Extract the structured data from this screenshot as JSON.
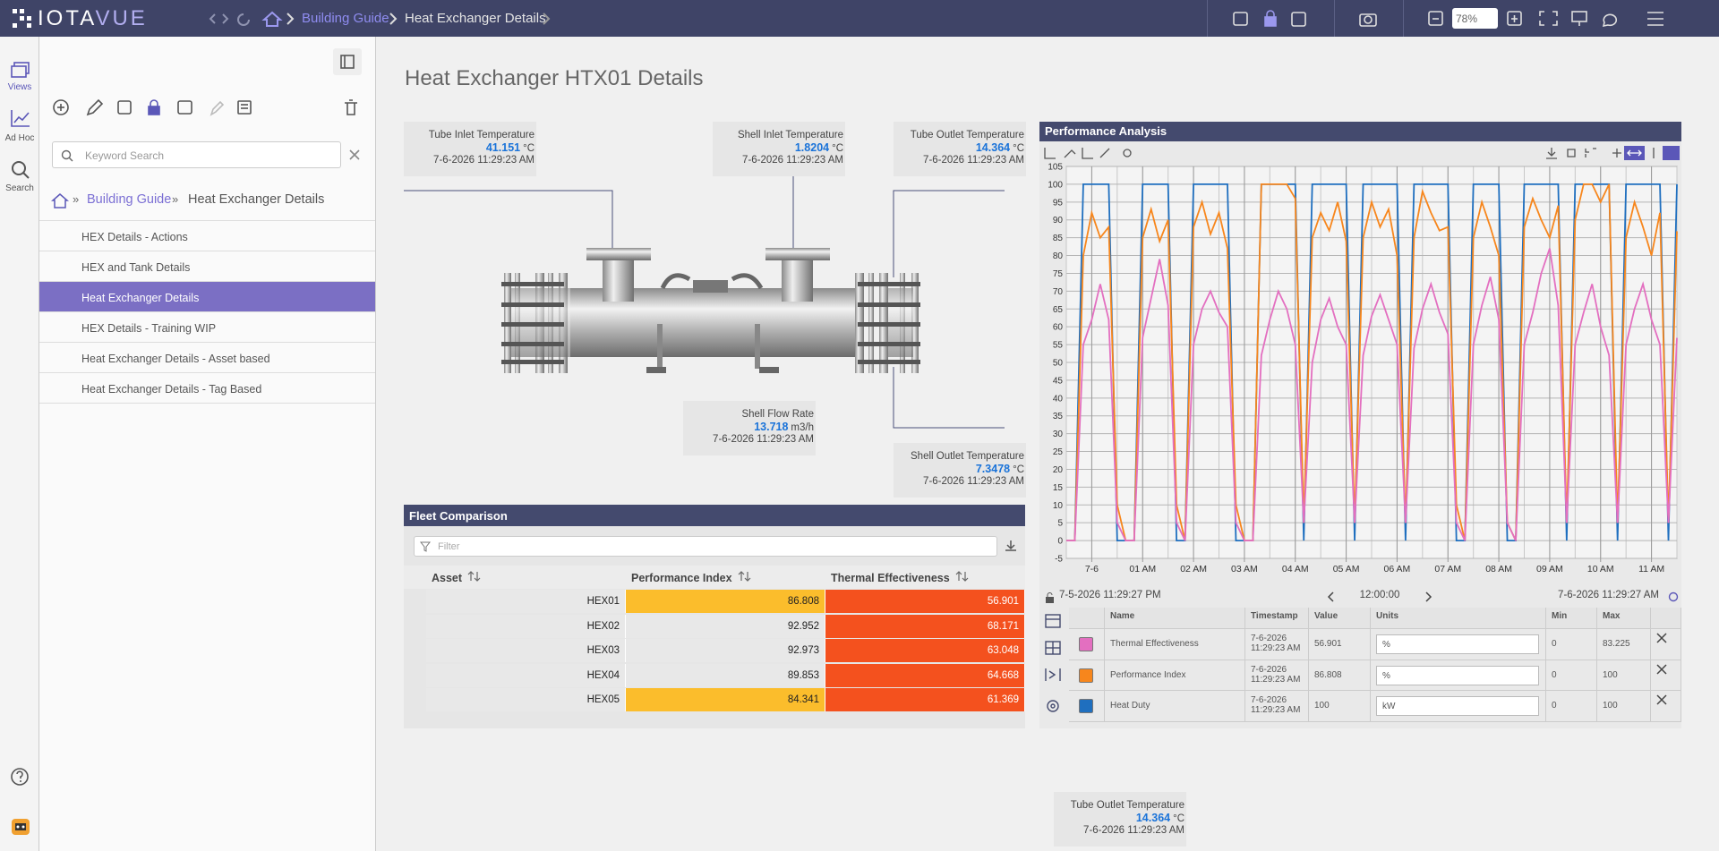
{
  "app": {
    "brand": [
      "IOTA",
      "VUE"
    ],
    "zoom": "78%"
  },
  "breadcrumb": [
    "Building Guide",
    "Heat Exchanger Details"
  ],
  "rail": [
    "Views",
    "Ad Hoc",
    "Search"
  ],
  "panel": {
    "search_placeholder": "Keyword Search",
    "active": 2,
    "items": [
      "HEX Details - Actions",
      "HEX and Tank Details",
      "Heat Exchanger Details",
      "HEX Details - Training WIP",
      "Heat Exchanger Details - Asset based",
      "Heat Exchanger Details - Tag Based"
    ]
  },
  "page_title": "Heat Exchanger HTX01 Details",
  "readings": [
    {
      "label": "Tube Inlet Temperature",
      "value": 41.151,
      "unit": "°C",
      "timestamp": "7-6-2026 11:29:23 AM"
    },
    {
      "label": "Shell Inlet Temperature",
      "value": 1.8204,
      "unit": "°C",
      "timestamp": "7-6-2026 11:29:23 AM"
    },
    {
      "label": "Tube Outlet Temperature",
      "value": 14.364,
      "unit": "°C",
      "timestamp": "7-6-2026 11:29:23 AM"
    },
    {
      "label": "Shell Flow Rate",
      "value": 13.718,
      "unit": "m3/h",
      "timestamp": "7-6-2026 11:29:23 AM"
    },
    {
      "label": "Shell Outlet Temperature",
      "value": 7.3478,
      "unit": "°C",
      "timestamp": "7-6-2026 11:29:23 AM"
    },
    {
      "label": "Tube Outlet Temperature",
      "value": 14.364,
      "unit": "°C",
      "timestamp": "7-6-2026 11:29:23 AM"
    }
  ],
  "fleet": {
    "title": "Fleet Comparison",
    "filter_placeholder": "Filter",
    "columns": [
      "Asset",
      "Performance Index",
      "Thermal Effectiveness"
    ],
    "rows": [
      {
        "asset": "HEX01",
        "performance_index": 86.808,
        "thermal_effectiveness": 56.901,
        "icon_color": "#2f7fc8",
        "colors": [
          "#fbbd2c",
          "#f4511e"
        ]
      },
      {
        "asset": "HEX02",
        "performance_index": 92.952,
        "thermal_effectiveness": 68.171,
        "icon_color": "#f08a24",
        "colors": [
          "#e8e8e8",
          "#f4511e"
        ]
      },
      {
        "asset": "HEX03",
        "performance_index": 92.973,
        "thermal_effectiveness": 63.048,
        "icon_color": "#2e9e3e",
        "colors": [
          "#e8e8e8",
          "#f4511e"
        ]
      },
      {
        "asset": "HEX04",
        "performance_index": 89.853,
        "thermal_effectiveness": 64.668,
        "icon_color": "#d62728",
        "colors": [
          "#e8e8e8",
          "#f4511e"
        ]
      },
      {
        "asset": "HEX05",
        "performance_index": 84.341,
        "thermal_effectiveness": 61.369,
        "icon_color": "#9467bd",
        "colors": [
          "#fbbd2c",
          "#f4511e"
        ]
      }
    ]
  },
  "chart_data": {
    "type": "line",
    "title": "Performance Analysis",
    "grid": true,
    "categories": [
      null,
      null,
      null,
      "7-6",
      null,
      null,
      null,
      null,
      null,
      "01 AM",
      null,
      null,
      null,
      null,
      null,
      "02 AM",
      null,
      null,
      null,
      null,
      null,
      "03 AM",
      null,
      null,
      null,
      null,
      null,
      "04 AM",
      null,
      null,
      null,
      null,
      null,
      "05 AM",
      null,
      null,
      null,
      null,
      null,
      "06 AM",
      null,
      null,
      null,
      null,
      null,
      "07 AM",
      null,
      null,
      null,
      null,
      null,
      "08 AM",
      null,
      null,
      null,
      null,
      null,
      "09 AM",
      null,
      null,
      null,
      null,
      null,
      "10 AM",
      null,
      null,
      null,
      null,
      null,
      "11 AM",
      null,
      null,
      null
    ],
    "ylim": [
      -5,
      105
    ],
    "yticks": [
      -5,
      0,
      5,
      10,
      15,
      20,
      25,
      30,
      35,
      40,
      45,
      50,
      55,
      60,
      65,
      70,
      75,
      80,
      85,
      90,
      95,
      100,
      105
    ],
    "range_start": "7-5-2026 11:29:27 PM",
    "range": "12:00:00",
    "range_end": "7-6-2026 11:29:27 AM",
    "legend_columns": [
      "Name",
      "Timestamp",
      "Value",
      "Units",
      "Min",
      "Max"
    ],
    "series": [
      {
        "name": "Thermal Effectiveness",
        "color": "#e36fc0",
        "timestamp": "7-6-2026 11:29:23 AM",
        "current": 56.901,
        "unit": "%",
        "min": 0,
        "max": 83.225,
        "values": [
          0,
          0,
          55,
          62,
          72,
          62,
          5,
          0,
          0,
          57,
          68,
          79,
          66,
          5,
          0,
          55,
          65,
          70,
          64,
          60,
          5,
          0,
          0,
          52,
          62,
          70,
          65,
          55,
          5,
          50,
          62,
          68,
          60,
          55,
          5,
          52,
          63,
          69,
          62,
          55,
          5,
          54,
          65,
          72,
          64,
          58,
          5,
          0,
          55,
          66,
          74,
          62,
          5,
          0,
          55,
          64,
          75,
          82,
          66,
          5,
          55,
          64,
          72,
          60,
          52,
          5,
          55,
          65,
          72,
          62,
          55,
          5,
          56.901
        ]
      },
      {
        "name": "Performance Index",
        "color": "#f7861c",
        "timestamp": "7-6-2026 11:29:23 AM",
        "current": 86.808,
        "unit": "%",
        "min": 0,
        "max": 100,
        "values": [
          0,
          0,
          80,
          92,
          85,
          88,
          10,
          0,
          0,
          85,
          93,
          84,
          90,
          10,
          0,
          88,
          95,
          86,
          92,
          82,
          10,
          0,
          0,
          100,
          100,
          100,
          100,
          96,
          5,
          85,
          92,
          87,
          95,
          84,
          5,
          85,
          95,
          88,
          93,
          80,
          5,
          85,
          98,
          92,
          87,
          88,
          10,
          0,
          85,
          95,
          88,
          80,
          5,
          0,
          88,
          96,
          90,
          85,
          94,
          5,
          90,
          100,
          100,
          95,
          100,
          5,
          85,
          95,
          88,
          80,
          92,
          5,
          86.808
        ]
      },
      {
        "name": "Heat Duty",
        "color": "#1f6fbf",
        "timestamp": "7-6-2026 11:29:23 AM",
        "current": 100,
        "unit": "kW",
        "min": 0,
        "max": 100,
        "values": [
          0,
          0,
          100,
          100,
          100,
          100,
          0,
          0,
          0,
          100,
          100,
          100,
          100,
          0,
          0,
          100,
          100,
          100,
          100,
          100,
          0,
          0,
          0,
          100,
          100,
          100,
          100,
          100,
          0,
          100,
          100,
          100,
          100,
          100,
          0,
          100,
          100,
          100,
          100,
          100,
          0,
          100,
          100,
          100,
          100,
          100,
          0,
          0,
          100,
          100,
          100,
          100,
          0,
          0,
          100,
          100,
          100,
          100,
          100,
          0,
          100,
          100,
          100,
          100,
          100,
          0,
          100,
          100,
          100,
          100,
          100,
          0,
          100
        ]
      }
    ]
  }
}
